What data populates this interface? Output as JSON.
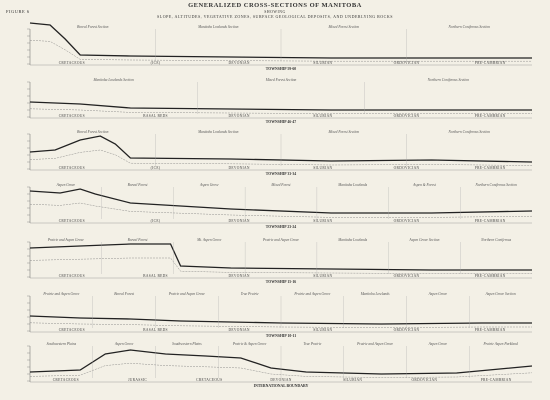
{
  "header": {
    "figure": "FIGURE 6",
    "title": "GENERALIZED CROSS-SECTIONS OF MANITOBA",
    "subtitle": "SHOWING",
    "description": "SLOPE, ALTITUDES, VEGETATIVE ZONES, SURFACE GEOLOGICAL DEPOSITS, AND UNDERLYING ROCKS"
  },
  "sections": [
    {
      "zones": [
        "Boreal Forest Section",
        "Manitoba Lowlands Section",
        "Mixed Forest Section",
        "Northern Coniferous Section"
      ],
      "rocks": [
        "CRETACEOUS",
        "(ICE)",
        "DEVONIAN",
        "SILURIAN",
        "ORDOVICIAN",
        "PRE-CAMBRIAN"
      ],
      "label": "TOWNSHIP 59-60"
    },
    {
      "zones": [
        "Manitoba Lowlands Section",
        "Mixed Forest Section",
        "Northern Coniferous Section"
      ],
      "rocks": [
        "CRETACEOUS",
        "BASAL BEDS",
        "DEVONIAN",
        "SILURIAN",
        "ORDOVICIAN",
        "PRE-CAMBRIAN"
      ],
      "label": "TOWNSHIP 46-47"
    },
    {
      "zones": [
        "Boreal Forest Section",
        "Manitoba Lowlands Section",
        "Mixed Forest Section",
        "Northern Coniferous Section"
      ],
      "rocks": [
        "CRETACEOUS",
        "(ICE)",
        "DEVONIAN",
        "SILURIAN",
        "ORDOVICIAN",
        "PRE-CAMBRIAN"
      ],
      "label": "TOWNSHIP 33-34"
    },
    {
      "zones": [
        "Aspen Grove",
        "Boreal Forest",
        "Aspen Grove",
        "Mixed Forest",
        "Manitoba Lowlands",
        "Aspen & Forest",
        "Northern Coniferous Section"
      ],
      "rocks": [
        "CRETACEOUS",
        "(ICE)",
        "DEVONIAN",
        "SILURIAN",
        "ORDOVICIAN",
        "PRE-CAMBRIAN"
      ],
      "label": "TOWNSHIP 23-24"
    },
    {
      "zones": [
        "Prairie and Aspen Grove",
        "Boreal Forest",
        "Mt. Aspen Grove",
        "Prairie and Aspen Grove",
        "Manitoba Lowlands",
        "Aspen Grove Section",
        "Northern Coniferous"
      ],
      "rocks": [
        "CRETACEOUS",
        "BASAL BEDS",
        "DEVONIAN",
        "SILURIAN",
        "ORDOVICIAN",
        "PRE-CAMBRIAN"
      ],
      "label": "TOWNSHIP 15-16"
    },
    {
      "zones": [
        "Prairie and Aspen Grove",
        "Boreal Forest",
        "Prairie and Aspen Grove",
        "True Prairie",
        "Prairie and Aspen Grove",
        "Manitoba Lowlands",
        "Aspen Grove",
        "Aspen Grove Section"
      ],
      "rocks": [
        "CRETACEOUS",
        "BASAL BEDS",
        "DEVONIAN",
        "SILURIAN",
        "ORDOVICIAN",
        "PRE-CAMBRIAN"
      ],
      "label": "TOWNSHIP 10-11"
    },
    {
      "zones": [
        "Southwestern Plains",
        "Aspen Grove",
        "Southwestern Plains",
        "Prairie & Aspen Grove",
        "True Prairie",
        "Prairie and Aspen Grove",
        "Aspen Grove",
        "Prairie Aspen Parkland"
      ],
      "rocks": [
        "CRETACEOUS",
        "JURASSIC",
        "CRETACEOUS",
        "DEVONIAN",
        "SILURIAN",
        "ORDOVICIAN",
        "PRE-CAMBRIAN"
      ],
      "label": "INTERNATIONAL BOUNDARY"
    }
  ]
}
